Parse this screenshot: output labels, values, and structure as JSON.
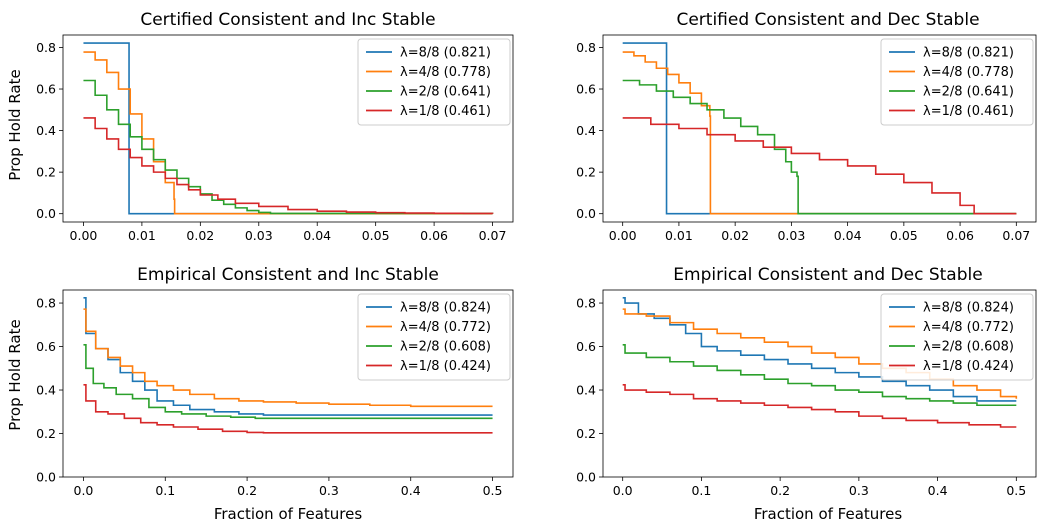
{
  "colors": {
    "lambda_8_8": "#1f77b4",
    "lambda_4_8": "#ff7f0e",
    "lambda_2_8": "#2ca02c",
    "lambda_1_8": "#d62728"
  },
  "chart_data": [
    {
      "type": "line",
      "step": true,
      "title": "Certified Consistent and Inc Stable",
      "xlabel": "",
      "ylabel": "Prop Hold Rate",
      "xlim": [
        -0.0035,
        0.0735
      ],
      "ylim": [
        -0.04,
        0.86
      ],
      "xticks": [
        0.0,
        0.01,
        0.02,
        0.03,
        0.04,
        0.05,
        0.06,
        0.07
      ],
      "xtick_labels": [
        "0.00",
        "0.01",
        "0.02",
        "0.03",
        "0.04",
        "0.05",
        "0.06",
        "0.07"
      ],
      "yticks": [
        0.0,
        0.2,
        0.4,
        0.6,
        0.8
      ],
      "ytick_labels": [
        "0.0",
        "0.2",
        "0.4",
        "0.6",
        "0.8"
      ],
      "legend": "upper-right",
      "series": [
        {
          "name": "λ=8/8 (0.821)",
          "color": "#1f77b4",
          "x": [
            0.0,
            0.0078,
            0.0078,
            0.07
          ],
          "y": [
            0.821,
            0.821,
            0.0,
            0.0
          ]
        },
        {
          "name": "λ=4/8 (0.778)",
          "color": "#ff7f0e",
          "x": [
            0.0,
            0.002,
            0.004,
            0.006,
            0.008,
            0.01,
            0.012,
            0.014,
            0.0155,
            0.0156,
            0.07
          ],
          "y": [
            0.778,
            0.74,
            0.68,
            0.6,
            0.48,
            0.36,
            0.25,
            0.15,
            0.07,
            0.0,
            0.0
          ]
        },
        {
          "name": "λ=2/8 (0.641)",
          "color": "#2ca02c",
          "x": [
            0.0,
            0.002,
            0.004,
            0.006,
            0.008,
            0.01,
            0.012,
            0.014,
            0.016,
            0.018,
            0.02,
            0.022,
            0.024,
            0.026,
            0.028,
            0.03,
            0.032,
            0.07
          ],
          "y": [
            0.641,
            0.57,
            0.5,
            0.43,
            0.37,
            0.31,
            0.26,
            0.21,
            0.17,
            0.13,
            0.095,
            0.065,
            0.045,
            0.028,
            0.015,
            0.006,
            0.001,
            0.0
          ]
        },
        {
          "name": "λ=1/8 (0.461)",
          "color": "#d62728",
          "x": [
            0.0,
            0.002,
            0.004,
            0.006,
            0.008,
            0.01,
            0.012,
            0.014,
            0.016,
            0.018,
            0.02,
            0.023,
            0.026,
            0.03,
            0.035,
            0.04,
            0.045,
            0.05,
            0.055,
            0.06,
            0.065,
            0.07
          ],
          "y": [
            0.461,
            0.41,
            0.36,
            0.31,
            0.27,
            0.23,
            0.2,
            0.17,
            0.14,
            0.115,
            0.09,
            0.07,
            0.05,
            0.035,
            0.02,
            0.012,
            0.008,
            0.005,
            0.003,
            0.002,
            0.001,
            0.0
          ]
        }
      ]
    },
    {
      "type": "line",
      "step": true,
      "title": "Certified Consistent and Dec Stable",
      "xlabel": "",
      "ylabel": "",
      "xlim": [
        -0.0035,
        0.0735
      ],
      "ylim": [
        -0.04,
        0.86
      ],
      "xticks": [
        0.0,
        0.01,
        0.02,
        0.03,
        0.04,
        0.05,
        0.06,
        0.07
      ],
      "xtick_labels": [
        "0.00",
        "0.01",
        "0.02",
        "0.03",
        "0.04",
        "0.05",
        "0.06",
        "0.07"
      ],
      "yticks": [
        0.0,
        0.2,
        0.4,
        0.6,
        0.8
      ],
      "ytick_labels": [
        "0.0",
        "0.2",
        "0.4",
        "0.6",
        "0.8"
      ],
      "legend": "upper-right",
      "series": [
        {
          "name": "λ=8/8 (0.821)",
          "color": "#1f77b4",
          "x": [
            0.0,
            0.0078,
            0.0078,
            0.07
          ],
          "y": [
            0.821,
            0.821,
            0.0,
            0.0
          ]
        },
        {
          "name": "λ=4/8 (0.778)",
          "color": "#ff7f0e",
          "x": [
            0.0,
            0.002,
            0.004,
            0.006,
            0.008,
            0.01,
            0.012,
            0.014,
            0.0155,
            0.0156,
            0.07
          ],
          "y": [
            0.778,
            0.76,
            0.73,
            0.7,
            0.67,
            0.63,
            0.58,
            0.52,
            0.47,
            0.0,
            0.0
          ]
        },
        {
          "name": "λ=2/8 (0.641)",
          "color": "#2ca02c",
          "x": [
            0.0,
            0.003,
            0.006,
            0.009,
            0.012,
            0.015,
            0.018,
            0.021,
            0.024,
            0.027,
            0.029,
            0.03,
            0.031,
            0.0312,
            0.07
          ],
          "y": [
            0.641,
            0.62,
            0.59,
            0.56,
            0.53,
            0.5,
            0.46,
            0.42,
            0.38,
            0.31,
            0.25,
            0.2,
            0.18,
            0.0,
            0.0
          ]
        },
        {
          "name": "λ=1/8 (0.461)",
          "color": "#d62728",
          "x": [
            0.0,
            0.005,
            0.01,
            0.015,
            0.02,
            0.025,
            0.03,
            0.035,
            0.04,
            0.045,
            0.05,
            0.055,
            0.06,
            0.0625,
            0.07
          ],
          "y": [
            0.461,
            0.43,
            0.41,
            0.38,
            0.35,
            0.32,
            0.29,
            0.26,
            0.23,
            0.19,
            0.15,
            0.1,
            0.04,
            0.0,
            0.0
          ]
        }
      ]
    },
    {
      "type": "line",
      "step": true,
      "title": "Empirical Consistent and Inc Stable",
      "xlabel": "Fraction of Features",
      "ylabel": "Prop Hold Rate",
      "xlim": [
        -0.025,
        0.525
      ],
      "ylim": [
        0.0,
        0.86
      ],
      "xticks": [
        0.0,
        0.1,
        0.2,
        0.3,
        0.4,
        0.5
      ],
      "xtick_labels": [
        "0.0",
        "0.1",
        "0.2",
        "0.3",
        "0.4",
        "0.5"
      ],
      "yticks": [
        0.0,
        0.2,
        0.4,
        0.6,
        0.8
      ],
      "ytick_labels": [
        "0.0",
        "0.2",
        "0.4",
        "0.6",
        "0.8"
      ],
      "legend": "upper-right",
      "series": [
        {
          "name": "λ=8/8 (0.824)",
          "color": "#1f77b4",
          "x": [
            0.0,
            0.003,
            0.015,
            0.03,
            0.045,
            0.06,
            0.075,
            0.09,
            0.11,
            0.13,
            0.16,
            0.19,
            0.22,
            0.5
          ],
          "y": [
            0.824,
            0.66,
            0.59,
            0.54,
            0.48,
            0.44,
            0.4,
            0.35,
            0.33,
            0.31,
            0.3,
            0.29,
            0.285,
            0.285
          ]
        },
        {
          "name": "λ=4/8 (0.772)",
          "color": "#ff7f0e",
          "x": [
            0.0,
            0.003,
            0.015,
            0.03,
            0.045,
            0.06,
            0.075,
            0.09,
            0.11,
            0.13,
            0.16,
            0.19,
            0.22,
            0.26,
            0.3,
            0.35,
            0.4,
            0.5
          ],
          "y": [
            0.772,
            0.67,
            0.59,
            0.55,
            0.51,
            0.48,
            0.44,
            0.42,
            0.4,
            0.38,
            0.36,
            0.35,
            0.345,
            0.34,
            0.335,
            0.33,
            0.325,
            0.325
          ]
        },
        {
          "name": "λ=2/8 (0.608)",
          "color": "#2ca02c",
          "x": [
            0.0,
            0.003,
            0.012,
            0.025,
            0.04,
            0.06,
            0.08,
            0.1,
            0.12,
            0.15,
            0.18,
            0.21,
            0.5
          ],
          "y": [
            0.608,
            0.5,
            0.43,
            0.41,
            0.38,
            0.36,
            0.32,
            0.3,
            0.29,
            0.28,
            0.275,
            0.27,
            0.27
          ]
        },
        {
          "name": "λ=1/8 (0.424)",
          "color": "#d62728",
          "x": [
            0.0,
            0.003,
            0.015,
            0.03,
            0.05,
            0.07,
            0.09,
            0.11,
            0.14,
            0.17,
            0.2,
            0.22,
            0.5
          ],
          "y": [
            0.424,
            0.35,
            0.3,
            0.29,
            0.27,
            0.25,
            0.24,
            0.23,
            0.22,
            0.21,
            0.205,
            0.203,
            0.203
          ]
        }
      ]
    },
    {
      "type": "line",
      "step": true,
      "title": "Empirical Consistent and Dec Stable",
      "xlabel": "Fraction of Features",
      "ylabel": "",
      "xlim": [
        -0.025,
        0.525
      ],
      "ylim": [
        0.0,
        0.86
      ],
      "xticks": [
        0.0,
        0.1,
        0.2,
        0.3,
        0.4,
        0.5
      ],
      "xtick_labels": [
        "0.0",
        "0.1",
        "0.2",
        "0.3",
        "0.4",
        "0.5"
      ],
      "yticks": [
        0.0,
        0.2,
        0.4,
        0.6,
        0.8
      ],
      "ytick_labels": [
        "0.0",
        "0.2",
        "0.4",
        "0.6",
        "0.8"
      ],
      "legend": "upper-right",
      "series": [
        {
          "name": "λ=8/8 (0.824)",
          "color": "#1f77b4",
          "x": [
            0.0,
            0.003,
            0.02,
            0.04,
            0.06,
            0.08,
            0.1,
            0.12,
            0.15,
            0.18,
            0.21,
            0.24,
            0.27,
            0.3,
            0.33,
            0.36,
            0.39,
            0.42,
            0.45,
            0.5
          ],
          "y": [
            0.824,
            0.8,
            0.75,
            0.73,
            0.7,
            0.66,
            0.6,
            0.58,
            0.56,
            0.54,
            0.52,
            0.5,
            0.48,
            0.46,
            0.44,
            0.42,
            0.4,
            0.37,
            0.35,
            0.35
          ]
        },
        {
          "name": "λ=4/8 (0.772)",
          "color": "#ff7f0e",
          "x": [
            0.0,
            0.003,
            0.03,
            0.06,
            0.09,
            0.12,
            0.15,
            0.18,
            0.21,
            0.24,
            0.27,
            0.3,
            0.33,
            0.36,
            0.39,
            0.42,
            0.45,
            0.48,
            0.5
          ],
          "y": [
            0.772,
            0.75,
            0.74,
            0.71,
            0.68,
            0.66,
            0.64,
            0.62,
            0.6,
            0.57,
            0.55,
            0.52,
            0.5,
            0.48,
            0.45,
            0.42,
            0.4,
            0.37,
            0.36
          ]
        },
        {
          "name": "λ=2/8 (0.608)",
          "color": "#2ca02c",
          "x": [
            0.0,
            0.003,
            0.03,
            0.06,
            0.09,
            0.12,
            0.15,
            0.18,
            0.21,
            0.24,
            0.27,
            0.3,
            0.33,
            0.36,
            0.39,
            0.42,
            0.45,
            0.5
          ],
          "y": [
            0.608,
            0.57,
            0.55,
            0.53,
            0.51,
            0.49,
            0.47,
            0.45,
            0.43,
            0.42,
            0.4,
            0.39,
            0.37,
            0.36,
            0.35,
            0.34,
            0.33,
            0.33
          ]
        },
        {
          "name": "λ=1/8 (0.424)",
          "color": "#d62728",
          "x": [
            0.0,
            0.003,
            0.03,
            0.06,
            0.09,
            0.12,
            0.15,
            0.18,
            0.21,
            0.24,
            0.27,
            0.3,
            0.33,
            0.36,
            0.4,
            0.44,
            0.48,
            0.5
          ],
          "y": [
            0.424,
            0.4,
            0.39,
            0.38,
            0.36,
            0.35,
            0.34,
            0.33,
            0.32,
            0.31,
            0.3,
            0.28,
            0.27,
            0.26,
            0.25,
            0.24,
            0.23,
            0.23
          ]
        }
      ]
    }
  ]
}
